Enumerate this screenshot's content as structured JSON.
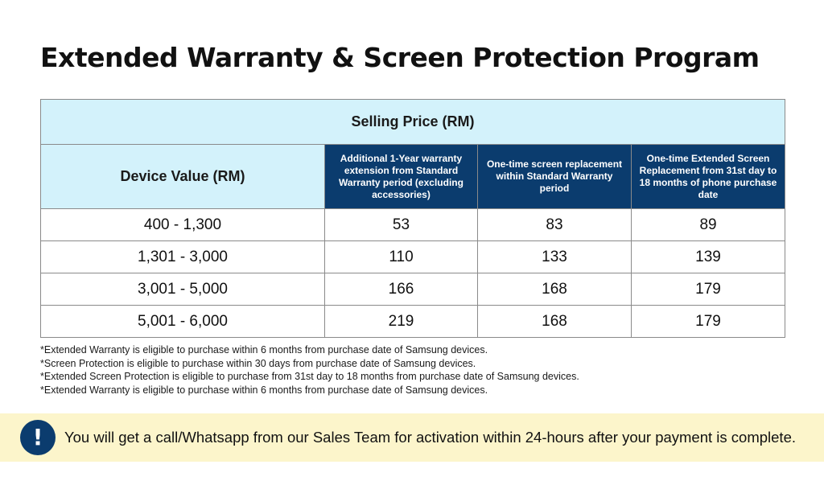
{
  "page": {
    "title": "Extended Warranty & Screen Protection Program"
  },
  "table": {
    "caption": "Selling Price (RM)",
    "device_header": "Device Value (RM)",
    "plan_headers": [
      "Additional 1-Year warranty extension from Standard Warranty period (excluding accessories)",
      "One-time screen replacement within Standard Warranty period",
      "One-time Extended Screen Replacement from 31st day to 18 months of phone purchase date"
    ],
    "rows": [
      {
        "device_value": "400 - 1,300",
        "prices": [
          "53",
          "83",
          "89"
        ]
      },
      {
        "device_value": "1,301 - 3,000",
        "prices": [
          "110",
          "133",
          "139"
        ]
      },
      {
        "device_value": "3,001 - 5,000",
        "prices": [
          "166",
          "168",
          "179"
        ]
      },
      {
        "device_value": "5,001 - 6,000",
        "prices": [
          "219",
          "168",
          "179"
        ]
      }
    ]
  },
  "notes": [
    "*Extended Warranty is eligible to purchase within 6 months from purchase date of Samsung devices.",
    "*Screen Protection is eligible to purchase within 30 days from purchase date of Samsung devices.",
    "*Extended Screen Protection is eligible to purchase from 31st day to 18 months from purchase date of Samsung devices.",
    "*Extended Warranty is eligible to purchase within 6 months from purchase date of Samsung devices."
  ],
  "notice": {
    "icon": "exclamation-icon",
    "icon_glyph": "!",
    "text": "You will get a call/Whatsapp from our Sales Team for activation within 24-hours after your payment is complete."
  },
  "colors": {
    "header_light": "#d3f2fb",
    "header_dark": "#0b3c6e",
    "notice_background": "#fcf5cb"
  }
}
